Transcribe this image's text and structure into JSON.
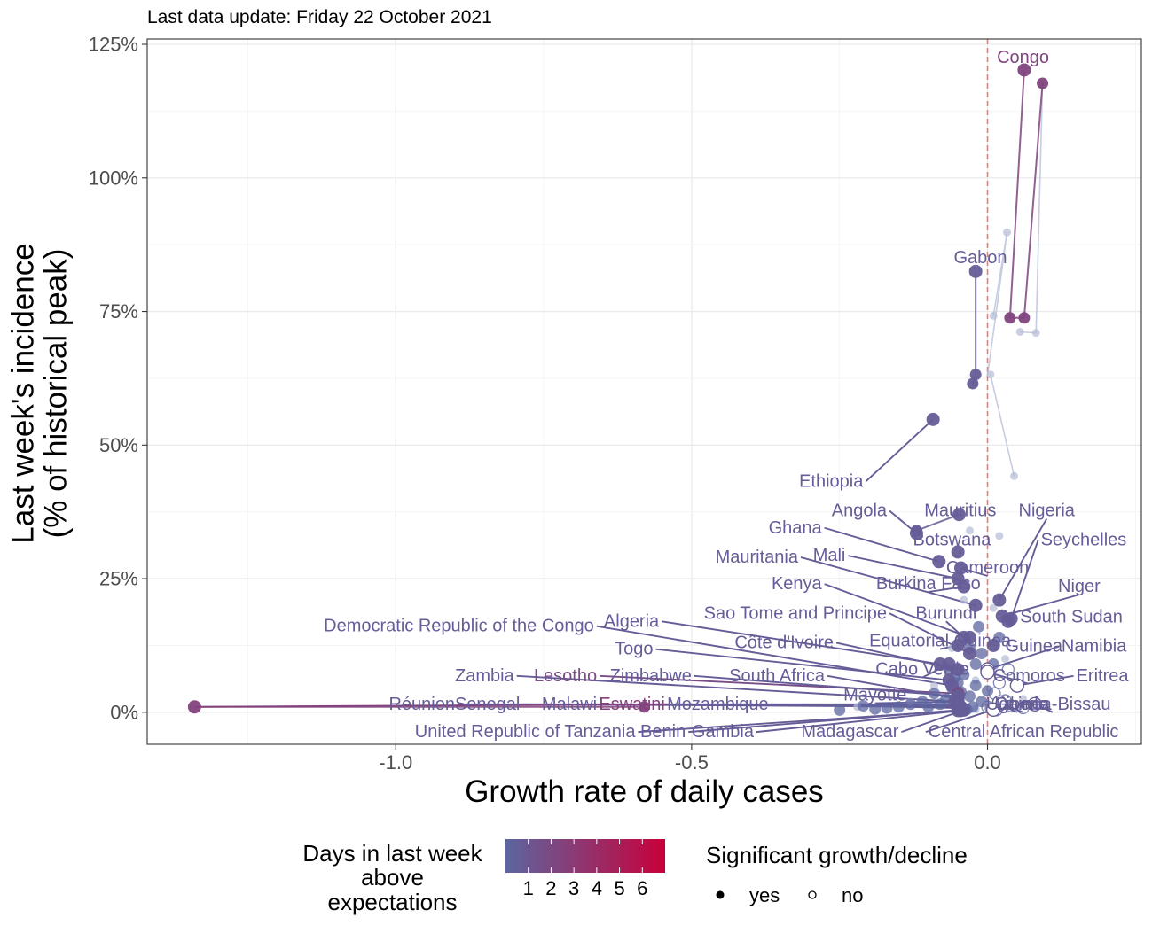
{
  "caption": "Last data update: Friday 22 October 2021",
  "chart_data": {
    "type": "scatter",
    "xlabel": "Growth rate of daily cases",
    "ylabel_lines": [
      "Last week's incidence",
      "(% of historical peak)"
    ],
    "xlim": [
      -1.42,
      0.26
    ],
    "ylim": [
      -6,
      126
    ],
    "x_ticks": [
      -1.0,
      -0.5,
      0.0
    ],
    "x_tick_labels": [
      "-1.0",
      "-0.5",
      "0.0"
    ],
    "y_ticks": [
      0,
      25,
      50,
      75,
      100,
      125
    ],
    "y_tick_labels": [
      "0%",
      "25%",
      "50%",
      "75%",
      "100%",
      "125%"
    ],
    "grid": true,
    "reference_line": {
      "x": 0.0,
      "style": "dashed",
      "color": "#f8766d"
    },
    "colors": {
      "low": "#5c66a0",
      "high": "#c8003a",
      "trail": "#b4bcd6"
    },
    "color_legend": {
      "title_lines": [
        "Days in last week",
        "above",
        "expectations"
      ],
      "ticks": [
        "1",
        "2",
        "3",
        "4",
        "5",
        "6"
      ],
      "range": [
        0,
        7
      ]
    },
    "shape_legend": {
      "title": "Significant growth/decline",
      "items": [
        {
          "label": "yes",
          "filled": true
        },
        {
          "label": "no",
          "filled": false
        }
      ]
    },
    "legend_position": "bottom",
    "countries": [
      {
        "name": "Congo",
        "x": 0.062,
        "y": 120.2,
        "days": 2.3,
        "sig": true,
        "trail": [
          [
            0.038,
            73.8
          ],
          [
            0.062,
            73.8
          ],
          [
            0.093,
            117.7
          ]
        ],
        "label_x": 0.06,
        "label_y": 122.5,
        "label_anchor": "middle"
      },
      {
        "name": "Gabon",
        "x": -0.02,
        "y": 82.5,
        "days": 0.6,
        "sig": true,
        "trail": [
          [
            -0.02,
            63.2
          ],
          [
            -0.025,
            61.5
          ]
        ],
        "label_x": -0.012,
        "label_y": 85.0,
        "label_anchor": "middle"
      },
      {
        "name": "Ethiopia",
        "x": -0.092,
        "y": 54.8,
        "days": 0.6,
        "sig": true,
        "trail": [],
        "label_x": -0.21,
        "label_y": 43.2,
        "label_anchor": "end"
      },
      {
        "name": "Angola",
        "x": -0.12,
        "y": 33.5,
        "days": 0.6,
        "sig": true,
        "trail": [],
        "label_x": -0.17,
        "label_y": 37.7,
        "label_anchor": "end"
      },
      {
        "name": "Mauritius",
        "x": -0.048,
        "y": 37.0,
        "days": 0.6,
        "sig": true,
        "trail": [
          [
            -0.12,
            34.0
          ]
        ],
        "label_x": -0.046,
        "label_y": 37.7,
        "label_anchor": "middle"
      },
      {
        "name": "Nigeria",
        "x": 0.02,
        "y": 21.0,
        "days": 0.6,
        "sig": true,
        "trail": [],
        "label_x": 0.1,
        "label_y": 37.7,
        "label_anchor": "middle"
      },
      {
        "name": "Ghana",
        "x": -0.082,
        "y": 28.2,
        "days": 0.6,
        "sig": true,
        "trail": [],
        "label_x": -0.28,
        "label_y": 34.5,
        "label_anchor": "end"
      },
      {
        "name": "Botswana",
        "x": -0.05,
        "y": 30.0,
        "days": 0.6,
        "sig": true,
        "trail": [],
        "label_x": -0.06,
        "label_y": 32.2,
        "label_anchor": "middle"
      },
      {
        "name": "Seychelles",
        "x": 0.04,
        "y": 17.5,
        "days": 0.6,
        "sig": true,
        "trail": [],
        "label_x": 0.09,
        "label_y": 32.2,
        "label_anchor": "start"
      },
      {
        "name": "Mauritania",
        "x": -0.02,
        "y": 20.0,
        "days": 0.6,
        "sig": true,
        "trail": [],
        "label_x": -0.32,
        "label_y": 29.0,
        "label_anchor": "end"
      },
      {
        "name": "Mali",
        "x": -0.05,
        "y": 25.0,
        "days": 0.6,
        "sig": true,
        "trail": [],
        "label_x": -0.24,
        "label_y": 29.3,
        "label_anchor": "end"
      },
      {
        "name": "Cameroon",
        "x": -0.045,
        "y": 27.0,
        "days": 0.6,
        "sig": true,
        "trail": [],
        "label_x": 0.0,
        "label_y": 27.0,
        "label_anchor": "middle"
      },
      {
        "name": "Kenya",
        "x": -0.03,
        "y": 14.0,
        "days": 0.6,
        "sig": true,
        "trail": [],
        "label_x": -0.28,
        "label_y": 24.0,
        "label_anchor": "end"
      },
      {
        "name": "Burkina Faso",
        "x": -0.04,
        "y": 23.5,
        "days": 0.6,
        "sig": true,
        "trail": [],
        "label_x": -0.1,
        "label_y": 24.0,
        "label_anchor": "middle"
      },
      {
        "name": "Niger",
        "x": 0.025,
        "y": 18.0,
        "days": 0.6,
        "sig": true,
        "trail": [],
        "label_x": 0.155,
        "label_y": 23.5,
        "label_anchor": "middle"
      },
      {
        "name": "Sao Tome and Principe",
        "x": -0.03,
        "y": 11.0,
        "days": 0.6,
        "sig": true,
        "trail": [],
        "label_x": -0.17,
        "label_y": 18.5,
        "label_anchor": "end"
      },
      {
        "name": "Burundi",
        "x": -0.04,
        "y": 14.0,
        "days": 0.6,
        "sig": true,
        "trail": [],
        "label_x": -0.07,
        "label_y": 18.5,
        "label_anchor": "middle"
      },
      {
        "name": "South Sudan",
        "x": 0.035,
        "y": 17.0,
        "days": 0.6,
        "sig": true,
        "trail": [],
        "label_x": 0.055,
        "label_y": 17.8,
        "label_anchor": "start"
      },
      {
        "name": "Democratic Republic of the Congo",
        "x": -0.06,
        "y": 5.0,
        "days": 0.6,
        "sig": true,
        "trail": [],
        "label_x": -0.665,
        "label_y": 16.1,
        "label_anchor": "end"
      },
      {
        "name": "Algeria",
        "x": -0.08,
        "y": 9.0,
        "days": 0.6,
        "sig": true,
        "trail": [],
        "label_x": -0.555,
        "label_y": 17.0,
        "label_anchor": "end"
      },
      {
        "name": "Côte d'Ivoire",
        "x": -0.05,
        "y": 8.0,
        "days": 0.6,
        "sig": true,
        "trail": [],
        "label_x": -0.26,
        "label_y": 13.0,
        "label_anchor": "end"
      },
      {
        "name": "Equatorial Guinea",
        "x": -0.05,
        "y": 12.5,
        "days": 0.6,
        "sig": true,
        "trail": [],
        "label_x": -0.08,
        "label_y": 13.3,
        "label_anchor": "middle"
      },
      {
        "name": "Togo",
        "x": -0.065,
        "y": 6.0,
        "days": 0.6,
        "sig": true,
        "trail": [],
        "label_x": -0.565,
        "label_y": 11.8,
        "label_anchor": "end"
      },
      {
        "name": "Guinea",
        "x": 0.01,
        "y": 12.5,
        "days": 0.6,
        "sig": true,
        "trail": [],
        "label_x": 0.03,
        "label_y": 12.3,
        "label_anchor": "start"
      },
      {
        "name": "Namibia",
        "x": 0.0,
        "y": 8.0,
        "days": 0.6,
        "sig": false,
        "trail": [],
        "label_x": 0.125,
        "label_y": 12.3,
        "label_anchor": "start"
      },
      {
        "name": "Cabo Verde",
        "x": -0.065,
        "y": 9.0,
        "days": 0.6,
        "sig": true,
        "trail": [],
        "label_x": -0.11,
        "label_y": 8.0,
        "label_anchor": "middle"
      },
      {
        "name": "Comoros",
        "x": 0.0,
        "y": 7.5,
        "days": 0.6,
        "sig": false,
        "trail": [],
        "label_x": 0.07,
        "label_y": 6.8,
        "label_anchor": "middle"
      },
      {
        "name": "Eritrea",
        "x": 0.05,
        "y": 5.0,
        "days": 0.6,
        "sig": false,
        "trail": [],
        "label_x": 0.15,
        "label_y": 6.8,
        "label_anchor": "start"
      },
      {
        "name": "Zambia",
        "x": -0.055,
        "y": 2.0,
        "days": 0.6,
        "sig": true,
        "trail": [],
        "label_x": -0.8,
        "label_y": 6.8,
        "label_anchor": "end"
      },
      {
        "name": "Lesotho",
        "x": -0.05,
        "y": 3.5,
        "days": 1.8,
        "sig": true,
        "trail": [],
        "label_x": -0.66,
        "label_y": 6.8,
        "label_anchor": "end"
      },
      {
        "name": "Zimbabwe",
        "x": -0.05,
        "y": 3.0,
        "days": 0.6,
        "sig": true,
        "trail": [],
        "label_x": -0.5,
        "label_y": 6.8,
        "label_anchor": "end"
      },
      {
        "name": "South Africa",
        "x": -0.05,
        "y": 2.5,
        "days": 0.6,
        "sig": true,
        "trail": [],
        "label_x": -0.275,
        "label_y": 6.8,
        "label_anchor": "end"
      },
      {
        "name": "Mayotte",
        "x": -0.05,
        "y": 2.0,
        "days": 0.6,
        "sig": true,
        "trail": [],
        "label_x": -0.19,
        "label_y": 3.2,
        "label_anchor": "middle"
      },
      {
        "name": "Réunion",
        "x": -0.05,
        "y": 1.5,
        "days": 0.6,
        "sig": true,
        "trail": [],
        "label_x": -0.9,
        "label_y": 1.5,
        "label_anchor": "end"
      },
      {
        "name": "Senegal",
        "x": -0.045,
        "y": 1.0,
        "days": 0.6,
        "sig": true,
        "trail": [],
        "label_x": -0.79,
        "label_y": 1.5,
        "label_anchor": "end"
      },
      {
        "name": "Malawi",
        "x": -0.05,
        "y": 1.2,
        "days": 0.6,
        "sig": true,
        "trail": [],
        "label_x": -0.66,
        "label_y": 1.5,
        "label_anchor": "end"
      },
      {
        "name": "Eswatini",
        "x": -1.34,
        "y": 1.0,
        "days": 2.5,
        "sig": true,
        "trail": [
          [
            -0.58,
            1.0
          ]
        ],
        "label_x": -0.545,
        "label_y": 1.5,
        "label_anchor": "end"
      },
      {
        "name": "Mozambique",
        "x": -0.05,
        "y": 0.8,
        "days": 0.6,
        "sig": true,
        "trail": [],
        "label_x": -0.37,
        "label_y": 1.5,
        "label_anchor": "end"
      },
      {
        "name": "Uganda",
        "x": 0.02,
        "y": 1.5,
        "days": 0.6,
        "sig": false,
        "trail": [],
        "label_x": 0.05,
        "label_y": 1.5,
        "label_anchor": "middle"
      },
      {
        "name": "Liberia",
        "x": 0.02,
        "y": 1.8,
        "days": 0.6,
        "sig": false,
        "trail": [],
        "label_x": 0.06,
        "label_y": 1.5,
        "label_anchor": "middle"
      },
      {
        "name": "Guinea-Bissau",
        "x": 0.08,
        "y": 1.5,
        "days": 0.6,
        "sig": false,
        "trail": [],
        "label_x": 0.11,
        "label_y": 1.5,
        "label_anchor": "middle"
      },
      {
        "name": "United Republic of Tanzania",
        "x": -0.05,
        "y": 0.3,
        "days": 0.6,
        "sig": true,
        "trail": [],
        "label_x": -0.595,
        "label_y": -3.7,
        "label_anchor": "end"
      },
      {
        "name": "Benin",
        "x": -0.04,
        "y": 0.5,
        "days": 0.6,
        "sig": true,
        "trail": [],
        "label_x": -0.51,
        "label_y": -3.7,
        "label_anchor": "end"
      },
      {
        "name": "Gambia",
        "x": -0.045,
        "y": 0.3,
        "days": 0.6,
        "sig": true,
        "trail": [],
        "label_x": -0.395,
        "label_y": -3.7,
        "label_anchor": "end"
      },
      {
        "name": "Madagascar",
        "x": -0.04,
        "y": 0.4,
        "days": 0.6,
        "sig": true,
        "trail": [],
        "label_x": -0.15,
        "label_y": -3.7,
        "label_anchor": "end"
      },
      {
        "name": "Central African Republic",
        "x": 0.01,
        "y": 0.5,
        "days": 0.6,
        "sig": false,
        "trail": [],
        "label_x": -0.1,
        "label_y": -3.7,
        "label_anchor": "start"
      }
    ],
    "faded_points": [
      {
        "x": 0.033,
        "y": 89.8
      },
      {
        "x": 0.01,
        "y": 74.2
      },
      {
        "x": 0.055,
        "y": 71.2
      },
      {
        "x": 0.082,
        "y": 71.0
      },
      {
        "x": 0.045,
        "y": 44.2
      },
      {
        "x": 0.005,
        "y": 63.2
      },
      {
        "x": 0.02,
        "y": 33.0
      },
      {
        "x": -0.03,
        "y": 34.0
      },
      {
        "x": -0.04,
        "y": 21.0
      },
      {
        "x": 0.01,
        "y": 19.5
      },
      {
        "x": -0.06,
        "y": 12.0
      },
      {
        "x": -0.02,
        "y": 6.0
      },
      {
        "x": 0.03,
        "y": 10.0
      },
      {
        "x": -0.09,
        "y": 5.0
      },
      {
        "x": 0.06,
        "y": 2.5
      },
      {
        "x": -0.13,
        "y": 2.0
      },
      {
        "x": -0.22,
        "y": 1.0
      },
      {
        "x": -0.02,
        "y": 0.6
      }
    ],
    "faded_trails": [
      [
        [
          0.005,
          63.2
        ],
        [
          0.045,
          44.2
        ]
      ],
      [
        [
          0.01,
          74.2
        ],
        [
          0.033,
          89.8
        ],
        [
          0.0,
          63.0
        ]
      ],
      [
        [
          0.055,
          71.2
        ],
        [
          0.082,
          71.0
        ],
        [
          0.093,
          117.7
        ]
      ]
    ],
    "cluster_points": [
      {
        "x": -0.02,
        "y": 5.0
      },
      {
        "x": -0.03,
        "y": 3.0
      },
      {
        "x": -0.01,
        "y": 2.0
      },
      {
        "x": 0.0,
        "y": 4.0
      },
      {
        "x": -0.04,
        "y": 7.0
      },
      {
        "x": -0.06,
        "y": 4.5
      },
      {
        "x": -0.07,
        "y": 2.5
      },
      {
        "x": -0.08,
        "y": 1.5
      },
      {
        "x": -0.09,
        "y": 3.5
      },
      {
        "x": -0.1,
        "y": 1.0
      },
      {
        "x": -0.11,
        "y": 2.0
      },
      {
        "x": -0.13,
        "y": 1.5
      },
      {
        "x": -0.15,
        "y": 1.0
      },
      {
        "x": -0.17,
        "y": 0.8
      },
      {
        "x": -0.19,
        "y": 0.6
      },
      {
        "x": -0.21,
        "y": 1.2
      },
      {
        "x": -0.25,
        "y": 0.4
      },
      {
        "x": -0.02,
        "y": 9.0
      },
      {
        "x": -0.01,
        "y": 11.0
      },
      {
        "x": 0.01,
        "y": 9.0
      },
      {
        "x": -0.03,
        "y": 12.0
      },
      {
        "x": 0.02,
        "y": 14.0
      },
      {
        "x": -0.015,
        "y": 16.0
      },
      {
        "x": -0.025,
        "y": 1.0
      },
      {
        "x": -0.035,
        "y": 0.5
      },
      {
        "x": 0.005,
        "y": 0.8
      },
      {
        "x": -0.05,
        "y": 5.5
      },
      {
        "x": -0.045,
        "y": 3.8
      },
      {
        "x": -0.055,
        "y": 6.5
      },
      {
        "x": -0.065,
        "y": 8.0
      }
    ],
    "cluster_open_points": [
      {
        "x": 0.0,
        "y": 1.0
      },
      {
        "x": 0.015,
        "y": 0.4
      },
      {
        "x": 0.03,
        "y": 2.2
      },
      {
        "x": 0.04,
        "y": 1.2
      },
      {
        "x": 0.06,
        "y": 0.8
      },
      {
        "x": 0.02,
        "y": 5.5
      },
      {
        "x": 0.012,
        "y": 3.5
      },
      {
        "x": 0.035,
        "y": 8.0
      }
    ]
  }
}
